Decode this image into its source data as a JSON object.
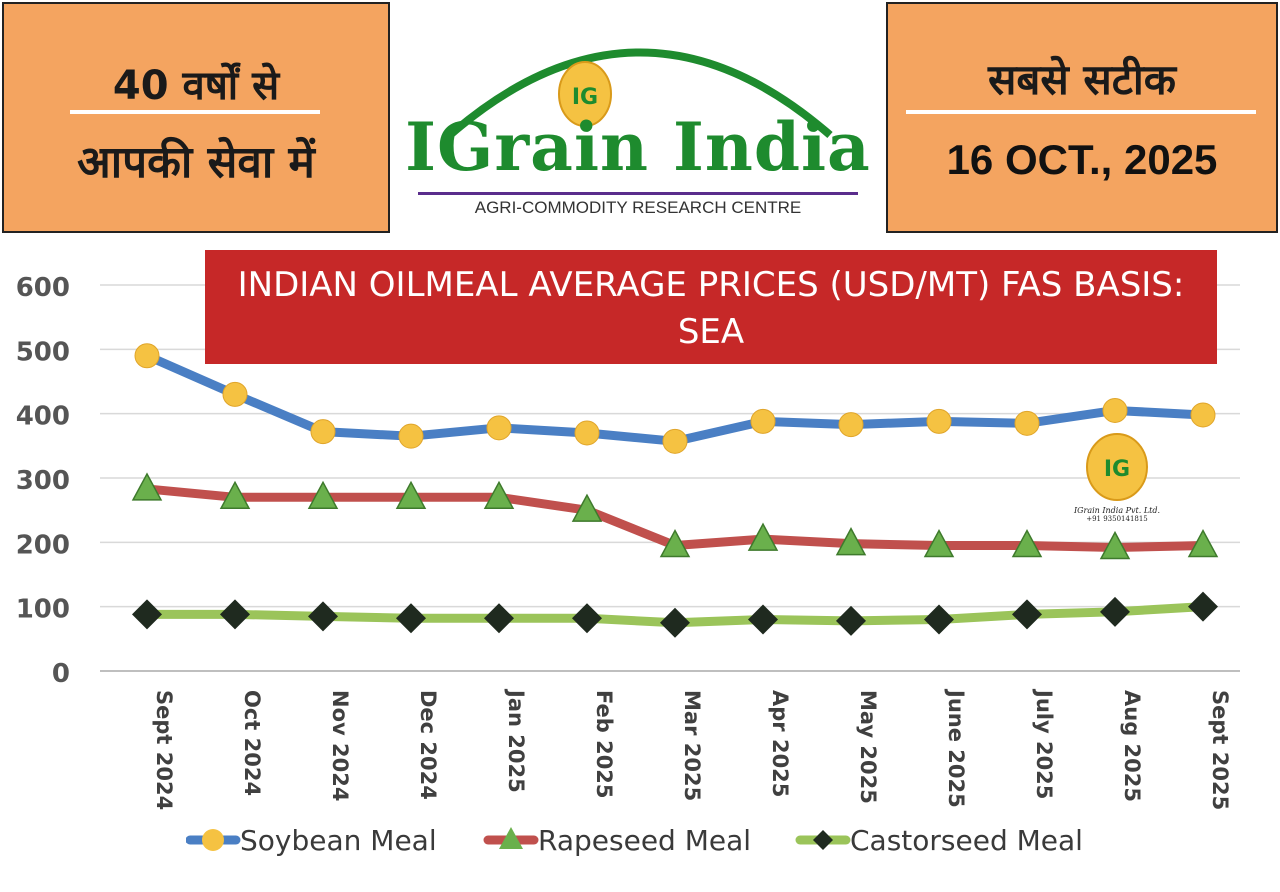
{
  "header": {
    "left_line1": "40 वर्षों से",
    "left_line2": "आपकी सेवा में",
    "right_line1": "सबसे सटीक",
    "date": "16 OCT., 2025",
    "logo_title": "IGrain India",
    "logo_subtitle": "AGRI-COMMODITY RESEARCH CENTRE",
    "logo_badge": "IG"
  },
  "watermark": {
    "badge": "IG",
    "company": "IGrain India Pvt. Ltd.",
    "phone": "+91 9350141815"
  },
  "chart_data": {
    "type": "line",
    "title": "INDIAN OILMEAL AVERAGE PRICES (USD/MT) FAS BASIS: SEA",
    "title_line1": "INDIAN OILMEAL AVERAGE PRICES (USD/MT) FAS BASIS:",
    "title_line2": "SEA",
    "categories": [
      "Sept 2024",
      "Oct 2024",
      "Nov 2024",
      "Dec 2024",
      "Jan 2025",
      "Feb 2025",
      "Mar 2025",
      "Apr 2025",
      "May 2025",
      "June 2025",
      "July 2025",
      "Aug 2025",
      "Sept 2025"
    ],
    "ylim": [
      0,
      600
    ],
    "yticks": [
      0,
      100,
      200,
      300,
      400,
      500,
      600
    ],
    "grid": true,
    "legend_position": "bottom",
    "series": [
      {
        "name": "Soybean Meal",
        "line_color": "#4a7fc4",
        "marker": "circle",
        "marker_color": "#f5c242",
        "values": [
          490,
          430,
          372,
          365,
          378,
          370,
          357,
          388,
          383,
          388,
          385,
          405,
          398
        ]
      },
      {
        "name": "Rapeseed Meal",
        "line_color": "#c0504d",
        "marker": "triangle",
        "marker_color": "#6ab04c",
        "values": [
          283,
          270,
          270,
          270,
          270,
          250,
          195,
          205,
          198,
          195,
          195,
          192,
          195
        ]
      },
      {
        "name": "Castorseed Meal",
        "line_color": "#9bc45a",
        "marker": "diamond",
        "marker_color": "#1f2a1f",
        "values": [
          88,
          88,
          85,
          82,
          82,
          82,
          75,
          80,
          78,
          80,
          88,
          92,
          100
        ]
      }
    ]
  }
}
